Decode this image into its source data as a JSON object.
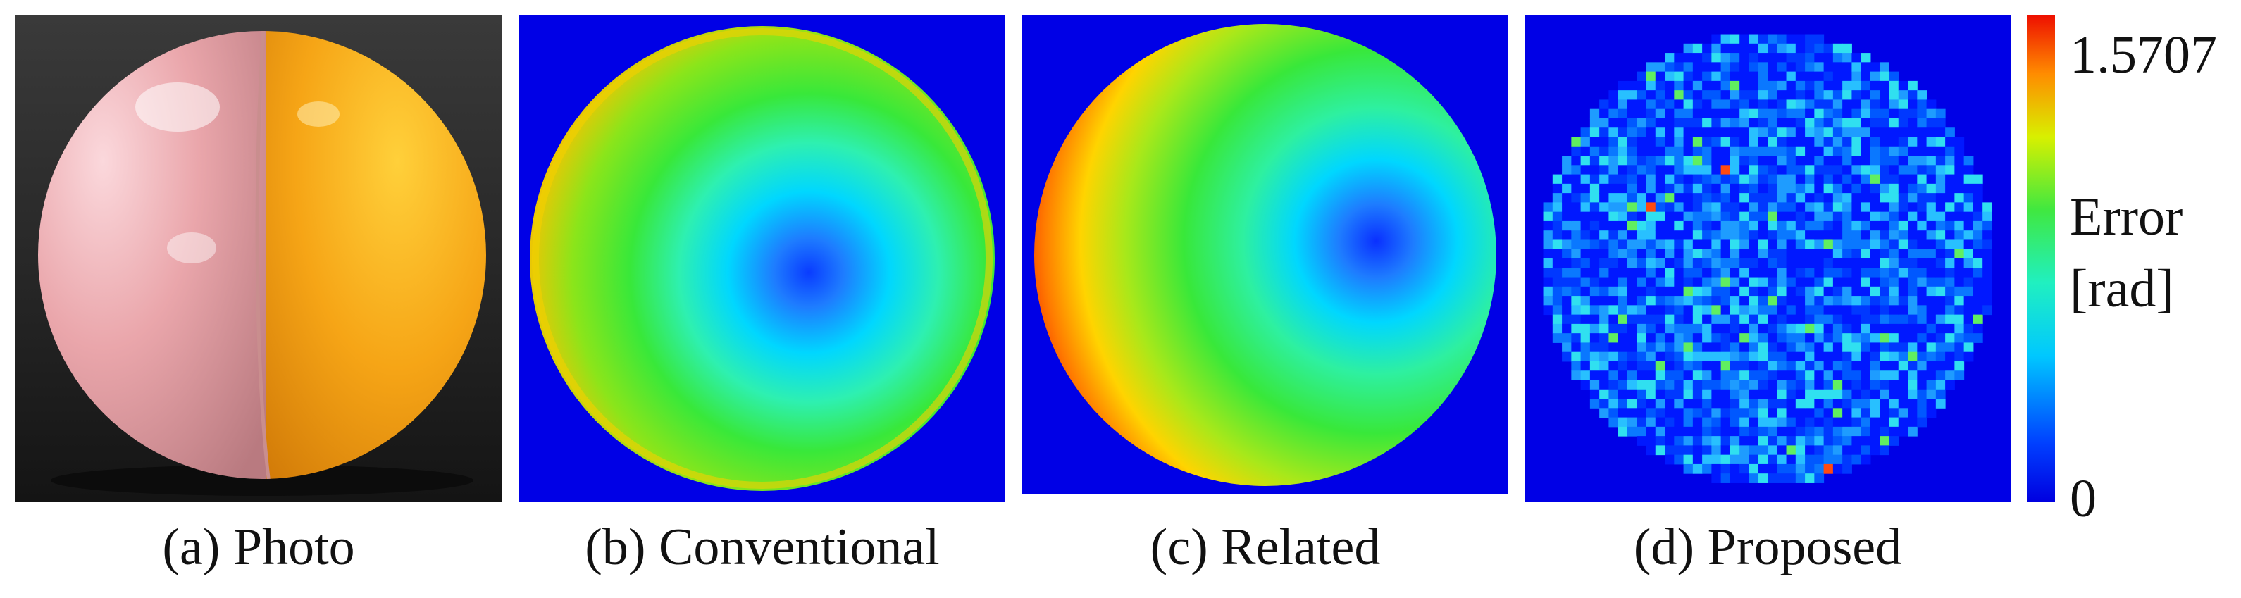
{
  "figure": {
    "captions": {
      "a": "(a) Photo",
      "b": "(b) Conventional",
      "c": "(c) Related",
      "d": "(d) Proposed"
    },
    "colorbar": {
      "max_label": "1.5707",
      "title_line1": "Error",
      "title_line2": "[rad]",
      "min_label": "0",
      "colormap": "jet",
      "range": [
        0,
        1.5707
      ]
    },
    "colors": {
      "background_map": "#0000e6",
      "ball_pink": "#e9a3a8",
      "ball_orange": "#f5a416",
      "photo_background": "#1f1f1f"
    }
  }
}
